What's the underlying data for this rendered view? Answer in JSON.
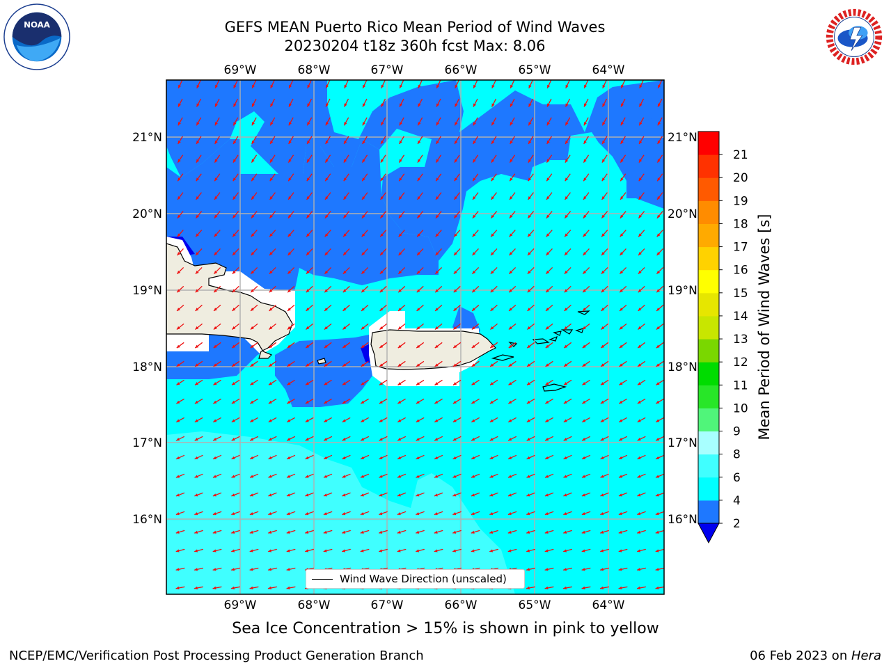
{
  "title_line1": "GEFS MEAN Puerto Rico Mean Period of Wind Waves",
  "title_line2": "20230204 t18z 360h fcst   Max: 8.06",
  "subtitle": "Sea Ice Concentration > 15% is shown in pink to yellow",
  "footer_left": "NCEP/EMC/Verification Post Processing Product Generation Branch",
  "footer_date": "06 Feb 2023 on ",
  "footer_machine": "Hera",
  "legend_label": "Wind Wave Direction (unscaled)",
  "colorbar": {
    "label": "Mean Period of Wind Waves [s]",
    "ticks": [
      "2",
      "4",
      "6",
      "8",
      "9",
      "10",
      "11",
      "12",
      "13",
      "14",
      "15",
      "16",
      "17",
      "18",
      "19",
      "20",
      "21"
    ],
    "colors": [
      "#0000ee",
      "#1e78ff",
      "#00ffff",
      "#40ffff",
      "#a8ffff",
      "#50f57a",
      "#28e628",
      "#00dc00",
      "#7ad700",
      "#c8e600",
      "#e6e600",
      "#ffff00",
      "#ffd200",
      "#ffaa00",
      "#ff8c00",
      "#ff5a00",
      "#ff3200",
      "#ff0000"
    ]
  },
  "lon_ticks": [
    "69°W",
    "68°W",
    "67°W",
    "66°W",
    "65°W",
    "64°W"
  ],
  "lat_ticks": [
    "21°N",
    "20°N",
    "19°N",
    "18°N",
    "17°N",
    "16°N"
  ],
  "logos": {
    "left": "noaa-logo",
    "right": "nws-logo",
    "left_text": "NOAA"
  }
}
